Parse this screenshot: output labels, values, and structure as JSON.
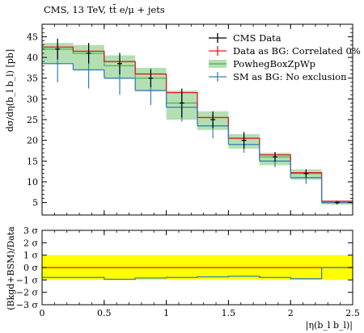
{
  "header": {
    "title": "CMS, 13 TeV, tt̄ e/μ + jets"
  },
  "chart_data": [
    {
      "type": "line",
      "panel": "main",
      "ylabel": "dσ/dη(b_l b_l) [pb]",
      "xlim": [
        0,
        2.5
      ],
      "ylim": [
        2,
        48
      ],
      "yticks": [
        5,
        10,
        15,
        20,
        25,
        30,
        35,
        40,
        45
      ],
      "bin_edges": [
        0,
        0.25,
        0.5,
        0.75,
        1.0,
        1.25,
        1.5,
        1.75,
        2.0,
        2.25,
        2.5
      ],
      "legend_position": "top-right",
      "series": [
        {
          "name": "CMS Data",
          "color": "#000000",
          "style": "points-with-errorbars",
          "x": [
            0.125,
            0.375,
            0.625,
            0.875,
            1.125,
            1.375,
            1.625,
            1.875,
            2.125,
            2.375
          ],
          "values": [
            42.0,
            41.0,
            38.5,
            35.0,
            29.0,
            25.0,
            20.0,
            16.0,
            12.0,
            5.0
          ],
          "errors": [
            2.5,
            2.5,
            2.6,
            2.2,
            3.5,
            2.0,
            2.0,
            1.2,
            1.0,
            0.4
          ]
        },
        {
          "name": "Data as BG: Correlated 0%",
          "color": "#e41a1c",
          "style": "step",
          "values": [
            42.5,
            41.5,
            39.0,
            36.0,
            31.5,
            25.5,
            20.5,
            16.5,
            12.2,
            5.3
          ]
        },
        {
          "name": "PowhegBoxZpWp",
          "color": "#4daf4a",
          "style": "band",
          "values": [
            42.0,
            41.0,
            38.0,
            35.0,
            29.0,
            25.5,
            20.5,
            16.0,
            12.0,
            5.0
          ],
          "band_low": [
            38.5,
            37.0,
            35.0,
            32.0,
            25.0,
            22.5,
            18.0,
            14.0,
            10.5,
            4.5
          ],
          "band_high": [
            43.5,
            43.0,
            40.5,
            37.5,
            32.0,
            27.0,
            21.5,
            17.0,
            13.0,
            5.5
          ]
        },
        {
          "name": "SM as BG: No exclusion",
          "color": "#377eb8",
          "style": "points-with-errorbars",
          "x": [
            0.125,
            0.375,
            0.625,
            0.875,
            1.125,
            1.375,
            1.625,
            1.875,
            2.125,
            2.375
          ],
          "values": [
            38.5,
            37.0,
            35.0,
            32.0,
            28.0,
            23.5,
            19.0,
            15.0,
            11.0,
            5.0
          ],
          "errors": [
            4.5,
            4.5,
            4.0,
            3.5,
            3.5,
            3.0,
            2.0,
            1.5,
            1.5,
            0.4
          ]
        }
      ]
    },
    {
      "type": "line",
      "panel": "ratio",
      "xlabel": "|η(b_l b_l)|",
      "ylabel": "(Bkgd+BSM)/Data",
      "xlim": [
        0,
        2.5
      ],
      "ylim": [
        -3,
        3
      ],
      "xticks": [
        0,
        0.5,
        1,
        1.5,
        2,
        2.5
      ],
      "yticks": [
        -3,
        -2,
        -1,
        0,
        1,
        2,
        3
      ],
      "ytick_labels": [
        "−3 σ",
        "−2 σ",
        "−1 σ",
        "0 σ",
        "1 σ",
        "2 σ",
        "3 σ"
      ],
      "band": {
        "low": -1,
        "high": 1,
        "color": "#ffff00"
      },
      "series": [
        {
          "name": "Data as BG: Correlated 0%",
          "color": "#e41a1c",
          "style": "step",
          "values": [
            0,
            0,
            0,
            0,
            0,
            0,
            0,
            0,
            0,
            0
          ]
        },
        {
          "name": "SM as BG: No exclusion",
          "color": "#377eb8",
          "style": "step",
          "values": [
            -0.8,
            -0.8,
            -0.95,
            -0.85,
            -0.8,
            -0.75,
            -0.7,
            -0.8,
            -0.9,
            0.0
          ]
        }
      ]
    }
  ]
}
